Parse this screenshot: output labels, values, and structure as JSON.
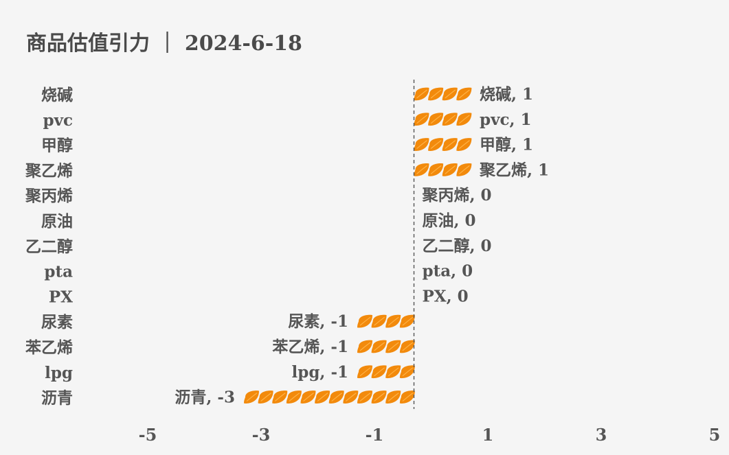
{
  "title": "商品估值引力 ｜ 2024-6-18",
  "colors": {
    "bar": "#f28a0c",
    "bar_highlight": "#ffb347",
    "text": "#555555",
    "zero_line": "#555555",
    "background": "#f5f5f5"
  },
  "chart_data": {
    "type": "bar",
    "orientation": "horizontal",
    "bar_style": "pictorial leaf icons",
    "title": "商品估值引力 ｜ 2024-6-18",
    "xlabel": "",
    "ylabel": "",
    "xlim": [
      -5,
      5
    ],
    "xticks": [
      -5,
      -3,
      -1,
      1,
      3,
      5
    ],
    "grid": false,
    "legend": "none",
    "zero_line": "dashed",
    "categories": [
      "烧碱",
      "pvc",
      "甲醇",
      "聚乙烯",
      "聚丙烯",
      "原油",
      "乙二醇",
      "pta",
      "PX",
      "尿素",
      "苯乙烯",
      "lpg",
      "沥青"
    ],
    "values": [
      1,
      1,
      1,
      1,
      0,
      0,
      0,
      0,
      0,
      -1,
      -1,
      -1,
      -3
    ],
    "data_labels": [
      "烧碱, 1",
      "pvc, 1",
      "甲醇, 1",
      "聚乙烯, 1",
      "聚丙烯, 0",
      "原油, 0",
      "乙二醇, 0",
      "pta, 0",
      "PX, 0",
      "尿素, -1",
      "苯乙烯, -1",
      "lpg, -1",
      "沥青, -3"
    ]
  }
}
